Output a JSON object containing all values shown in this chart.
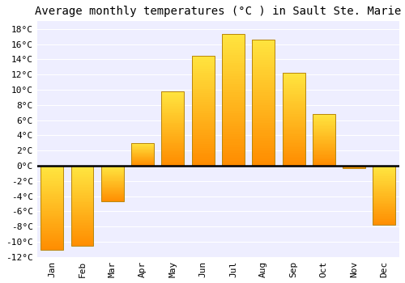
{
  "title": "Average monthly temperatures (°C ) in Sault Ste. Marie",
  "months": [
    "Jan",
    "Feb",
    "Mar",
    "Apr",
    "May",
    "Jun",
    "Jul",
    "Aug",
    "Sep",
    "Oct",
    "Nov",
    "Dec"
  ],
  "values": [
    -11,
    -10.5,
    -4.7,
    3.0,
    9.8,
    14.5,
    17.3,
    16.6,
    12.2,
    6.8,
    -0.3,
    -7.8
  ],
  "bar_color_top": "#FFD040",
  "bar_color_bottom": "#FFA000",
  "bar_edge_color": "#B8860B",
  "background_color": "#FFFFFF",
  "plot_bg_color": "#EEEEFF",
  "grid_color": "#FFFFFF",
  "zero_line_color": "#000000",
  "ylim": [
    -12,
    19
  ],
  "yticks": [
    -12,
    -10,
    -8,
    -6,
    -4,
    -2,
    0,
    2,
    4,
    6,
    8,
    10,
    12,
    14,
    16,
    18
  ],
  "title_fontsize": 10,
  "tick_fontsize": 8
}
